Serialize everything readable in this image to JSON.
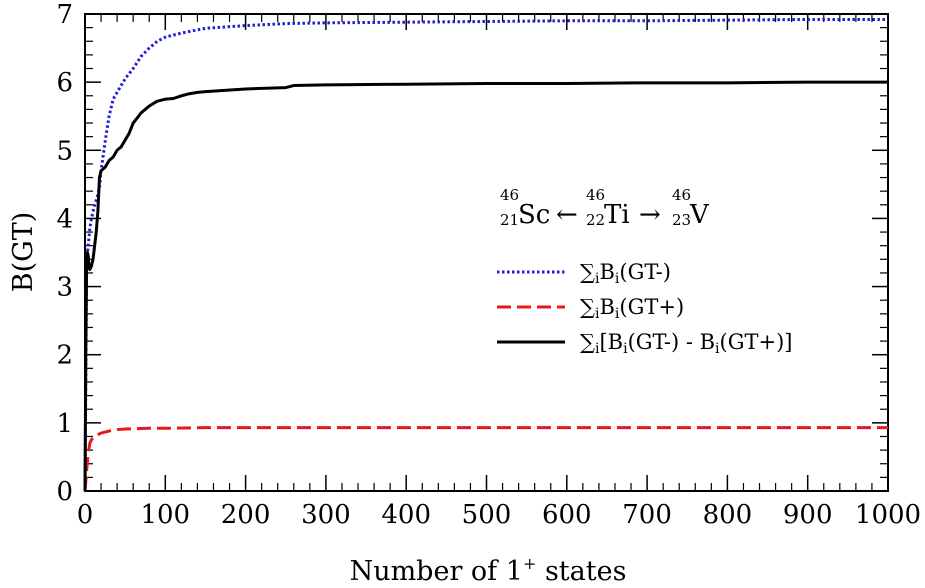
{
  "chart_data": {
    "type": "line",
    "xlabel": "Number of 1",
    "xlabel_sup": "+",
    "xlabel_tail": " states",
    "ylabel": "B(GT)",
    "xlim": [
      0,
      1000
    ],
    "ylim": [
      0,
      7
    ],
    "xticks": [
      "0",
      "100",
      "200",
      "300",
      "400",
      "500",
      "600",
      "700",
      "800",
      "900",
      "1000"
    ],
    "yticks": [
      "0",
      "1",
      "2",
      "3",
      "4",
      "5",
      "6",
      "7"
    ],
    "grid": false,
    "legend_position": "right",
    "annotation": {
      "left": {
        "mass": "46",
        "charge": "21",
        "symbol": "Sc"
      },
      "arrow_left": "←",
      "center": {
        "mass": "46",
        "charge": "22",
        "symbol": "Ti"
      },
      "arrow_right": "→",
      "right": {
        "mass": "46",
        "charge": "23",
        "symbol": "V"
      }
    },
    "series": [
      {
        "name": "∑iBi(GT-)",
        "legend": {
          "sum": "∑",
          "i": "i",
          "B": "B",
          "sub": "i",
          "rest": "(GT-)"
        },
        "color": "#1f1fd6",
        "style": "dotted",
        "x": [
          0,
          2,
          4,
          6,
          8,
          10,
          12,
          15,
          18,
          20,
          23,
          26,
          30,
          35,
          40,
          45,
          50,
          60,
          70,
          80,
          90,
          100,
          120,
          150,
          200,
          250,
          300,
          400,
          500,
          600,
          700,
          800,
          900,
          1000
        ],
        "y": [
          0,
          3.4,
          3.6,
          3.85,
          4.0,
          4.1,
          4.2,
          4.3,
          4.45,
          4.7,
          4.95,
          5.2,
          5.5,
          5.75,
          5.85,
          5.95,
          6.05,
          6.2,
          6.38,
          6.5,
          6.6,
          6.66,
          6.72,
          6.79,
          6.83,
          6.86,
          6.87,
          6.88,
          6.89,
          6.9,
          6.9,
          6.91,
          6.92,
          6.92
        ]
      },
      {
        "name": "∑iBi(GT+)",
        "legend": {
          "sum": "∑",
          "i": "i",
          "B": "B",
          "sub": "i",
          "rest": "(GT+)"
        },
        "color": "#e41a1c",
        "style": "dashed",
        "x": [
          0,
          2,
          4,
          6,
          8,
          10,
          15,
          20,
          30,
          40,
          50,
          80,
          100,
          150,
          200,
          300,
          400,
          500,
          600,
          700,
          800,
          900,
          1000
        ],
        "y": [
          0,
          0.3,
          0.55,
          0.7,
          0.75,
          0.78,
          0.82,
          0.85,
          0.88,
          0.9,
          0.91,
          0.92,
          0.92,
          0.93,
          0.93,
          0.93,
          0.93,
          0.93,
          0.93,
          0.93,
          0.93,
          0.93,
          0.93
        ]
      },
      {
        "name": "∑i[Bi(GT-) - Bi(GT+)]",
        "legend": {
          "sum": "∑",
          "i": "i",
          "B": "[B",
          "sub": "i",
          "rest": "(GT-) - B",
          "sub2": "i",
          "rest2": "(GT+)]"
        },
        "color": "#000000",
        "style": "solid",
        "x": [
          0,
          1,
          2,
          3,
          4,
          5,
          6,
          8,
          10,
          12,
          14,
          16,
          18,
          20,
          25,
          30,
          35,
          40,
          45,
          50,
          55,
          60,
          70,
          80,
          90,
          100,
          110,
          120,
          130,
          140,
          150,
          200,
          250,
          260,
          300,
          400,
          500,
          600,
          700,
          800,
          900,
          1000
        ],
        "y": [
          0,
          2.0,
          3.3,
          3.5,
          3.45,
          3.3,
          3.25,
          3.3,
          3.4,
          3.6,
          3.8,
          4.1,
          4.6,
          4.7,
          4.75,
          4.85,
          4.9,
          5.0,
          5.05,
          5.15,
          5.25,
          5.4,
          5.55,
          5.65,
          5.72,
          5.75,
          5.76,
          5.8,
          5.83,
          5.85,
          5.86,
          5.9,
          5.92,
          5.95,
          5.96,
          5.97,
          5.98,
          5.98,
          5.99,
          5.99,
          6.0,
          6.0
        ]
      }
    ]
  }
}
